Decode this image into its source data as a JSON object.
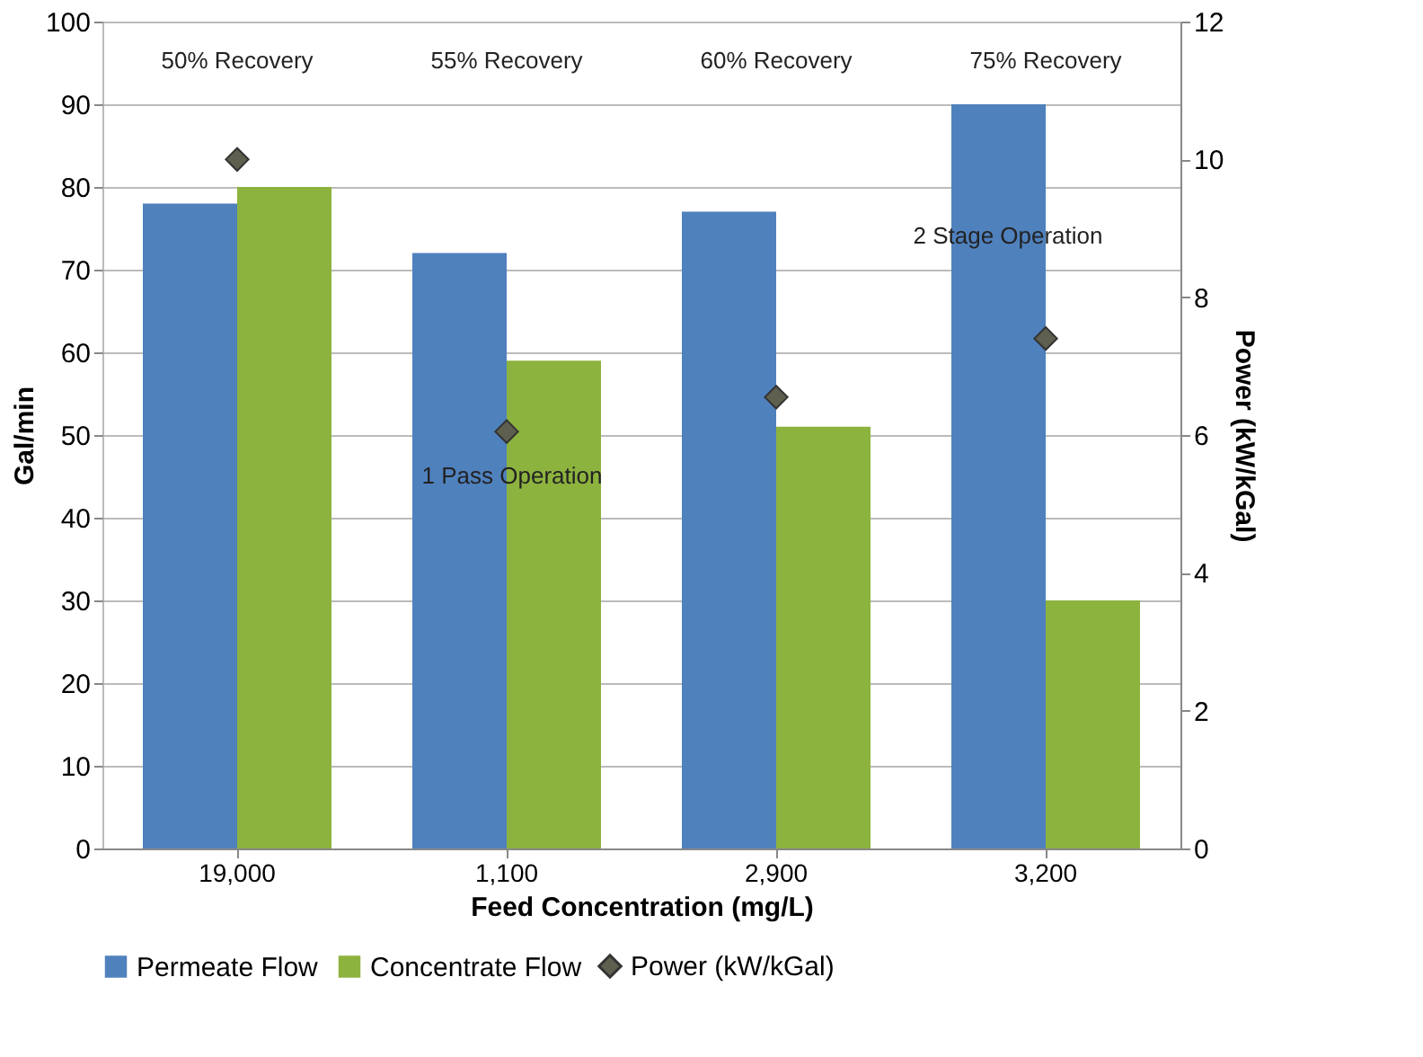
{
  "chart_data": {
    "type": "bar",
    "xlabel": "Feed Concentration (mg/L)",
    "ylabel": "Gal/min",
    "y2label": "Power (kW/kGal)",
    "categories": [
      "19,000",
      "1,100",
      "2,900",
      "3,200"
    ],
    "series": [
      {
        "name": "Permeate Flow",
        "color": "#4f81bd",
        "values": [
          78,
          72,
          77,
          90
        ]
      },
      {
        "name": "Concentrate Flow",
        "color": "#8db33f",
        "values": [
          80,
          59,
          51,
          30
        ]
      },
      {
        "name": "Power (kW/kGal)",
        "type": "scatter",
        "axis": "y2",
        "marker": "diamond",
        "color": "#5f5f4f",
        "values": [
          10,
          6.05,
          6.55,
          7.4
        ]
      }
    ],
    "ylim": [
      0,
      100
    ],
    "yticks": [
      0,
      10,
      20,
      30,
      40,
      50,
      60,
      70,
      80,
      90,
      100
    ],
    "y2lim": [
      0,
      12
    ],
    "y2ticks": [
      0,
      2,
      4,
      6,
      8,
      10,
      12
    ],
    "grid": "y",
    "legend": "bottom",
    "annotations": [
      "50% Recovery",
      "55% Recovery",
      "60% Recovery",
      "75% Recovery",
      "1 Pass Operation",
      "2 Stage Operation"
    ]
  }
}
